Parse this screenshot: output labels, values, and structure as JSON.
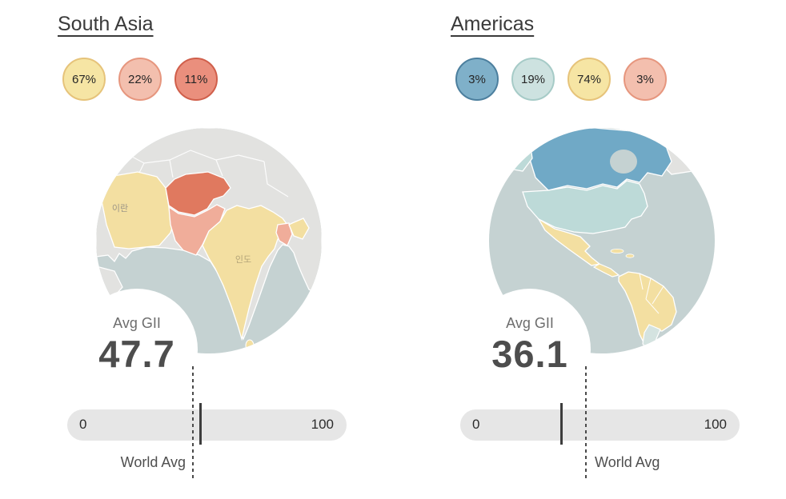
{
  "world_avg": 45,
  "chart_data": [
    {
      "type": "choropleth",
      "title": "South Asia",
      "legend_shares_pct": [
        67,
        22,
        11
      ],
      "legend_colors": [
        "#f6e5a4",
        "#f3bfae",
        "#ea8f7d"
      ],
      "avg_gii": 47.7,
      "scale": [
        0,
        100
      ],
      "world_avg_marker_estimate": 45,
      "map_text_labels": [
        "이란",
        "인도"
      ]
    },
    {
      "type": "choropleth",
      "title": "Americas",
      "legend_shares_pct": [
        3,
        19,
        74,
        3
      ],
      "legend_colors": [
        "#7fb0c9",
        "#cde2e0",
        "#f6e5a4",
        "#f3bfae"
      ],
      "avg_gii": 36.1,
      "scale": [
        0,
        100
      ],
      "world_avg_marker_estimate": 45,
      "map_text_labels": []
    }
  ],
  "panels": [
    {
      "title": "South Asia",
      "badges": [
        {
          "label": "67%",
          "fill": "#f6e5a4",
          "border": "#e6c37a"
        },
        {
          "label": "22%",
          "fill": "#f3bfae",
          "border": "#e6967e"
        },
        {
          "label": "11%",
          "fill": "#ea8f7d",
          "border": "#d05f4b"
        }
      ],
      "avg_gii_label": "Avg GII",
      "gii_display": "47.7",
      "gii": 47.7,
      "scale_min": "0",
      "scale_max": "100",
      "world_avg_label": "World Avg",
      "map": {
        "labels": [
          {
            "text": "이란"
          },
          {
            "text": "인도"
          }
        ],
        "colors": {
          "ocean": "#c5d2d2",
          "land": "#e2e2e0",
          "iran": "#f3dfa1",
          "afghanistan": "#e0795f",
          "pakistan": "#f0ad9a",
          "india": "#f3dfa1",
          "bangladesh": "#f0ad9a"
        }
      }
    },
    {
      "title": "Americas",
      "badges": [
        {
          "label": "3%",
          "fill": "#7fb0c9",
          "border": "#4c7f9e"
        },
        {
          "label": "19%",
          "fill": "#cde2e0",
          "border": "#a6cbc7"
        },
        {
          "label": "74%",
          "fill": "#f6e5a4",
          "border": "#e6c37a"
        },
        {
          "label": "3%",
          "fill": "#f3bfae",
          "border": "#e6967e"
        }
      ],
      "avg_gii_label": "Avg GII",
      "gii_display": "36.1",
      "gii": 36.1,
      "scale_min": "0",
      "scale_max": "100",
      "world_avg_label": "World Avg",
      "map": {
        "labels": [],
        "colors": {
          "ocean": "#c5d2d2",
          "land": "#e2e2e0",
          "canada": "#70a9c6",
          "usa": "#bddad8",
          "latam": "#f3dfa1",
          "southern_cone": "#d4e3e0"
        }
      }
    }
  ]
}
